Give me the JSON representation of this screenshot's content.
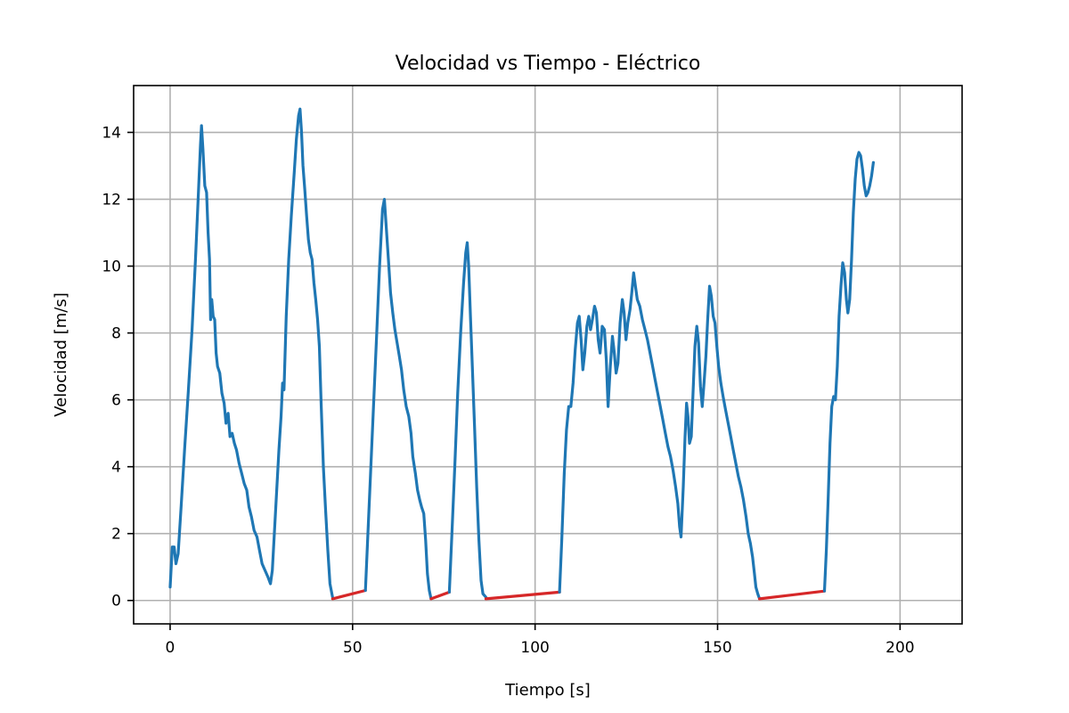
{
  "chart_data": {
    "type": "line",
    "title": "Velocidad vs Tiempo - Eléctrico",
    "xlabel": "Tiempo [s]",
    "ylabel": "Velocidad [m/s]",
    "xlim": [
      -10,
      217
    ],
    "ylim": [
      -0.7,
      15.4
    ],
    "xticks": [
      0,
      50,
      100,
      150,
      200
    ],
    "yticks": [
      0,
      2,
      4,
      6,
      8,
      10,
      12,
      14
    ],
    "xtick_labels": [
      "0",
      "50",
      "100",
      "150",
      "200"
    ],
    "ytick_labels": [
      "0",
      "2",
      "4",
      "6",
      "8",
      "10",
      "12",
      "14"
    ],
    "grid": true,
    "series": [
      {
        "color": "#1f77b4",
        "points": [
          [
            0,
            0.4
          ],
          [
            0.6,
            1.6
          ],
          [
            1.1,
            1.6
          ],
          [
            1.6,
            1.1
          ],
          [
            2.2,
            1.4
          ],
          [
            3,
            2.8
          ],
          [
            4,
            4.6
          ],
          [
            5,
            6.3
          ],
          [
            6,
            8.1
          ],
          [
            7,
            10.3
          ],
          [
            7.8,
            12.3
          ],
          [
            8.3,
            13.6
          ],
          [
            8.6,
            14.2
          ],
          [
            9,
            13.5
          ],
          [
            9.5,
            12.4
          ],
          [
            10,
            12.2
          ],
          [
            10.4,
            11.0
          ],
          [
            10.8,
            10.2
          ],
          [
            11.1,
            8.4
          ],
          [
            11.4,
            9.0
          ],
          [
            11.8,
            8.5
          ],
          [
            12.2,
            8.4
          ],
          [
            12.6,
            7.4
          ],
          [
            13,
            7.0
          ],
          [
            13.6,
            6.8
          ],
          [
            14.2,
            6.2
          ],
          [
            14.8,
            5.9
          ],
          [
            15.3,
            5.3
          ],
          [
            15.9,
            5.6
          ],
          [
            16.4,
            4.9
          ],
          [
            17,
            5.0
          ],
          [
            17.6,
            4.7
          ],
          [
            18.2,
            4.5
          ],
          [
            18.9,
            4.1
          ],
          [
            19.6,
            3.8
          ],
          [
            20.3,
            3.5
          ],
          [
            21,
            3.3
          ],
          [
            21.6,
            2.8
          ],
          [
            22.3,
            2.5
          ],
          [
            23,
            2.1
          ],
          [
            23.8,
            1.9
          ],
          [
            24.5,
            1.5
          ],
          [
            25.2,
            1.1
          ],
          [
            26,
            0.9
          ],
          [
            26.8,
            0.7
          ],
          [
            27.5,
            0.5
          ],
          [
            28,
            0.9
          ],
          [
            29,
            2.9
          ],
          [
            29.8,
            4.5
          ],
          [
            30.4,
            5.5
          ],
          [
            30.8,
            6.5
          ],
          [
            31.2,
            6.3
          ],
          [
            31.8,
            8.5
          ],
          [
            32.5,
            10.2
          ],
          [
            33.2,
            11.5
          ],
          [
            34,
            12.8
          ],
          [
            34.6,
            13.8
          ],
          [
            35.2,
            14.5
          ],
          [
            35.6,
            14.7
          ],
          [
            36,
            14.0
          ],
          [
            36.4,
            13.0
          ],
          [
            36.9,
            12.3
          ],
          [
            37.4,
            11.5
          ],
          [
            37.9,
            10.8
          ],
          [
            38.4,
            10.4
          ],
          [
            38.9,
            10.2
          ],
          [
            39.4,
            9.5
          ],
          [
            39.9,
            9.0
          ],
          [
            40.4,
            8.4
          ],
          [
            40.9,
            7.6
          ],
          [
            41.4,
            5.8
          ],
          [
            42,
            4.0
          ],
          [
            42.6,
            2.7
          ],
          [
            43.2,
            1.5
          ],
          [
            43.8,
            0.5
          ],
          [
            44.5,
            0.1
          ]
        ]
      },
      {
        "color": "#d62728",
        "points": [
          [
            44.5,
            0.05
          ],
          [
            53.5,
            0.3
          ]
        ]
      },
      {
        "color": "#1f77b4",
        "points": [
          [
            53.5,
            0.3
          ],
          [
            54.2,
            2.0
          ],
          [
            55,
            4.0
          ],
          [
            55.8,
            6.0
          ],
          [
            56.6,
            8.0
          ],
          [
            57.4,
            10.0
          ],
          [
            58.2,
            11.7
          ],
          [
            58.7,
            12.0
          ],
          [
            59.2,
            11.2
          ],
          [
            59.8,
            10.2
          ],
          [
            60.4,
            9.2
          ],
          [
            61,
            8.6
          ],
          [
            61.6,
            8.1
          ],
          [
            62.2,
            7.7
          ],
          [
            62.8,
            7.3
          ],
          [
            63.4,
            6.9
          ],
          [
            64,
            6.3
          ],
          [
            64.7,
            5.8
          ],
          [
            65.4,
            5.5
          ],
          [
            66,
            5.0
          ],
          [
            66.5,
            4.3
          ],
          [
            67.2,
            3.8
          ],
          [
            67.8,
            3.3
          ],
          [
            68.4,
            3.0
          ],
          [
            68.9,
            2.8
          ],
          [
            69.5,
            2.6
          ],
          [
            70,
            1.8
          ],
          [
            70.5,
            0.8
          ],
          [
            71,
            0.3
          ],
          [
            71.5,
            0.05
          ]
        ]
      },
      {
        "color": "#d62728",
        "points": [
          [
            71.5,
            0.05
          ],
          [
            76.5,
            0.25
          ]
        ]
      },
      {
        "color": "#1f77b4",
        "points": [
          [
            76.5,
            0.25
          ],
          [
            77.2,
            2.0
          ],
          [
            78,
            4.0
          ],
          [
            78.8,
            6.2
          ],
          [
            79.6,
            8.0
          ],
          [
            80.4,
            9.5
          ],
          [
            81,
            10.4
          ],
          [
            81.4,
            10.7
          ],
          [
            81.8,
            10.0
          ],
          [
            82.3,
            8.5
          ],
          [
            82.8,
            7.0
          ],
          [
            83.4,
            5.2
          ],
          [
            84,
            3.4
          ],
          [
            84.6,
            1.8
          ],
          [
            85.2,
            0.6
          ],
          [
            85.7,
            0.2
          ],
          [
            86.5,
            0.1
          ]
        ]
      },
      {
        "color": "#d62728",
        "points": [
          [
            86.5,
            0.05
          ],
          [
            106.7,
            0.25
          ]
        ]
      },
      {
        "color": "#1f77b4",
        "points": [
          [
            106.7,
            0.25
          ],
          [
            107.3,
            1.8
          ],
          [
            108,
            3.8
          ],
          [
            108.6,
            5.1
          ],
          [
            109.2,
            5.8
          ],
          [
            109.8,
            5.8
          ],
          [
            110.4,
            6.5
          ],
          [
            111,
            7.5
          ],
          [
            111.6,
            8.3
          ],
          [
            112.1,
            8.5
          ],
          [
            112.6,
            7.8
          ],
          [
            113.1,
            6.9
          ],
          [
            113.6,
            7.4
          ],
          [
            114.2,
            8.2
          ],
          [
            114.7,
            8.5
          ],
          [
            115.2,
            8.1
          ],
          [
            115.7,
            8.4
          ],
          [
            116.3,
            8.8
          ],
          [
            116.8,
            8.6
          ],
          [
            117.3,
            7.8
          ],
          [
            117.8,
            7.4
          ],
          [
            118.4,
            8.2
          ],
          [
            119,
            8.1
          ],
          [
            119.5,
            7.2
          ],
          [
            120,
            5.8
          ],
          [
            120.6,
            7.0
          ],
          [
            121.2,
            7.9
          ],
          [
            121.7,
            7.4
          ],
          [
            122.2,
            6.8
          ],
          [
            122.7,
            7.1
          ],
          [
            123.3,
            8.3
          ],
          [
            123.9,
            9.0
          ],
          [
            124.4,
            8.6
          ],
          [
            124.9,
            7.8
          ],
          [
            125.4,
            8.3
          ],
          [
            126,
            8.7
          ],
          [
            126.5,
            9.2
          ],
          [
            127,
            9.8
          ],
          [
            127.5,
            9.4
          ],
          [
            128,
            9.0
          ],
          [
            128.7,
            8.8
          ],
          [
            129.4,
            8.4
          ],
          [
            130.1,
            8.1
          ],
          [
            130.8,
            7.8
          ],
          [
            131.5,
            7.4
          ],
          [
            132.2,
            7.0
          ],
          [
            132.9,
            6.6
          ],
          [
            133.6,
            6.2
          ],
          [
            134.3,
            5.8
          ],
          [
            135,
            5.4
          ],
          [
            135.7,
            5.0
          ],
          [
            136.4,
            4.6
          ],
          [
            137.1,
            4.3
          ],
          [
            137.8,
            3.9
          ],
          [
            138.5,
            3.4
          ],
          [
            139.1,
            2.9
          ],
          [
            139.6,
            2.2
          ],
          [
            140,
            1.9
          ],
          [
            140.6,
            3.4
          ],
          [
            141.1,
            4.9
          ],
          [
            141.5,
            5.9
          ],
          [
            141.9,
            5.5
          ],
          [
            142.3,
            4.7
          ],
          [
            142.8,
            4.9
          ],
          [
            143.3,
            6.3
          ],
          [
            143.8,
            7.6
          ],
          [
            144.3,
            8.2
          ],
          [
            144.8,
            7.7
          ],
          [
            145.3,
            6.4
          ],
          [
            145.8,
            5.8
          ],
          [
            146.3,
            6.5
          ],
          [
            146.8,
            7.3
          ],
          [
            147.3,
            8.4
          ],
          [
            147.8,
            9.4
          ],
          [
            148.3,
            9.1
          ],
          [
            148.8,
            8.5
          ],
          [
            149.3,
            8.3
          ],
          [
            149.8,
            7.6
          ],
          [
            150.3,
            7.0
          ],
          [
            150.9,
            6.5
          ],
          [
            151.5,
            6.1
          ],
          [
            152.2,
            5.7
          ],
          [
            152.9,
            5.3
          ],
          [
            153.6,
            4.9
          ],
          [
            154.3,
            4.5
          ],
          [
            155,
            4.1
          ],
          [
            155.7,
            3.7
          ],
          [
            156.4,
            3.4
          ],
          [
            157.1,
            3.0
          ],
          [
            157.8,
            2.5
          ],
          [
            158.4,
            2.0
          ],
          [
            159,
            1.7
          ],
          [
            159.6,
            1.3
          ],
          [
            160.1,
            0.8
          ],
          [
            160.5,
            0.4
          ],
          [
            161,
            0.2
          ],
          [
            161.5,
            0.05
          ]
        ]
      },
      {
        "color": "#d62728",
        "points": [
          [
            161.5,
            0.05
          ],
          [
            179.3,
            0.28
          ]
        ]
      },
      {
        "color": "#1f77b4",
        "points": [
          [
            179.3,
            0.28
          ],
          [
            179.8,
            1.5
          ],
          [
            180.3,
            3.0
          ],
          [
            180.8,
            4.7
          ],
          [
            181.3,
            5.8
          ],
          [
            181.8,
            6.1
          ],
          [
            182.3,
            6.0
          ],
          [
            182.8,
            7.0
          ],
          [
            183.3,
            8.5
          ],
          [
            183.8,
            9.4
          ],
          [
            184.3,
            10.1
          ],
          [
            184.8,
            9.8
          ],
          [
            185.3,
            9.0
          ],
          [
            185.7,
            8.6
          ],
          [
            186.2,
            9.0
          ],
          [
            186.7,
            10.2
          ],
          [
            187.2,
            11.6
          ],
          [
            187.7,
            12.6
          ],
          [
            188.2,
            13.2
          ],
          [
            188.7,
            13.4
          ],
          [
            189.2,
            13.3
          ],
          [
            189.7,
            12.9
          ],
          [
            190.2,
            12.4
          ],
          [
            190.7,
            12.1
          ],
          [
            191.2,
            12.2
          ],
          [
            191.7,
            12.4
          ],
          [
            192.2,
            12.7
          ],
          [
            192.7,
            13.1
          ]
        ]
      }
    ]
  }
}
